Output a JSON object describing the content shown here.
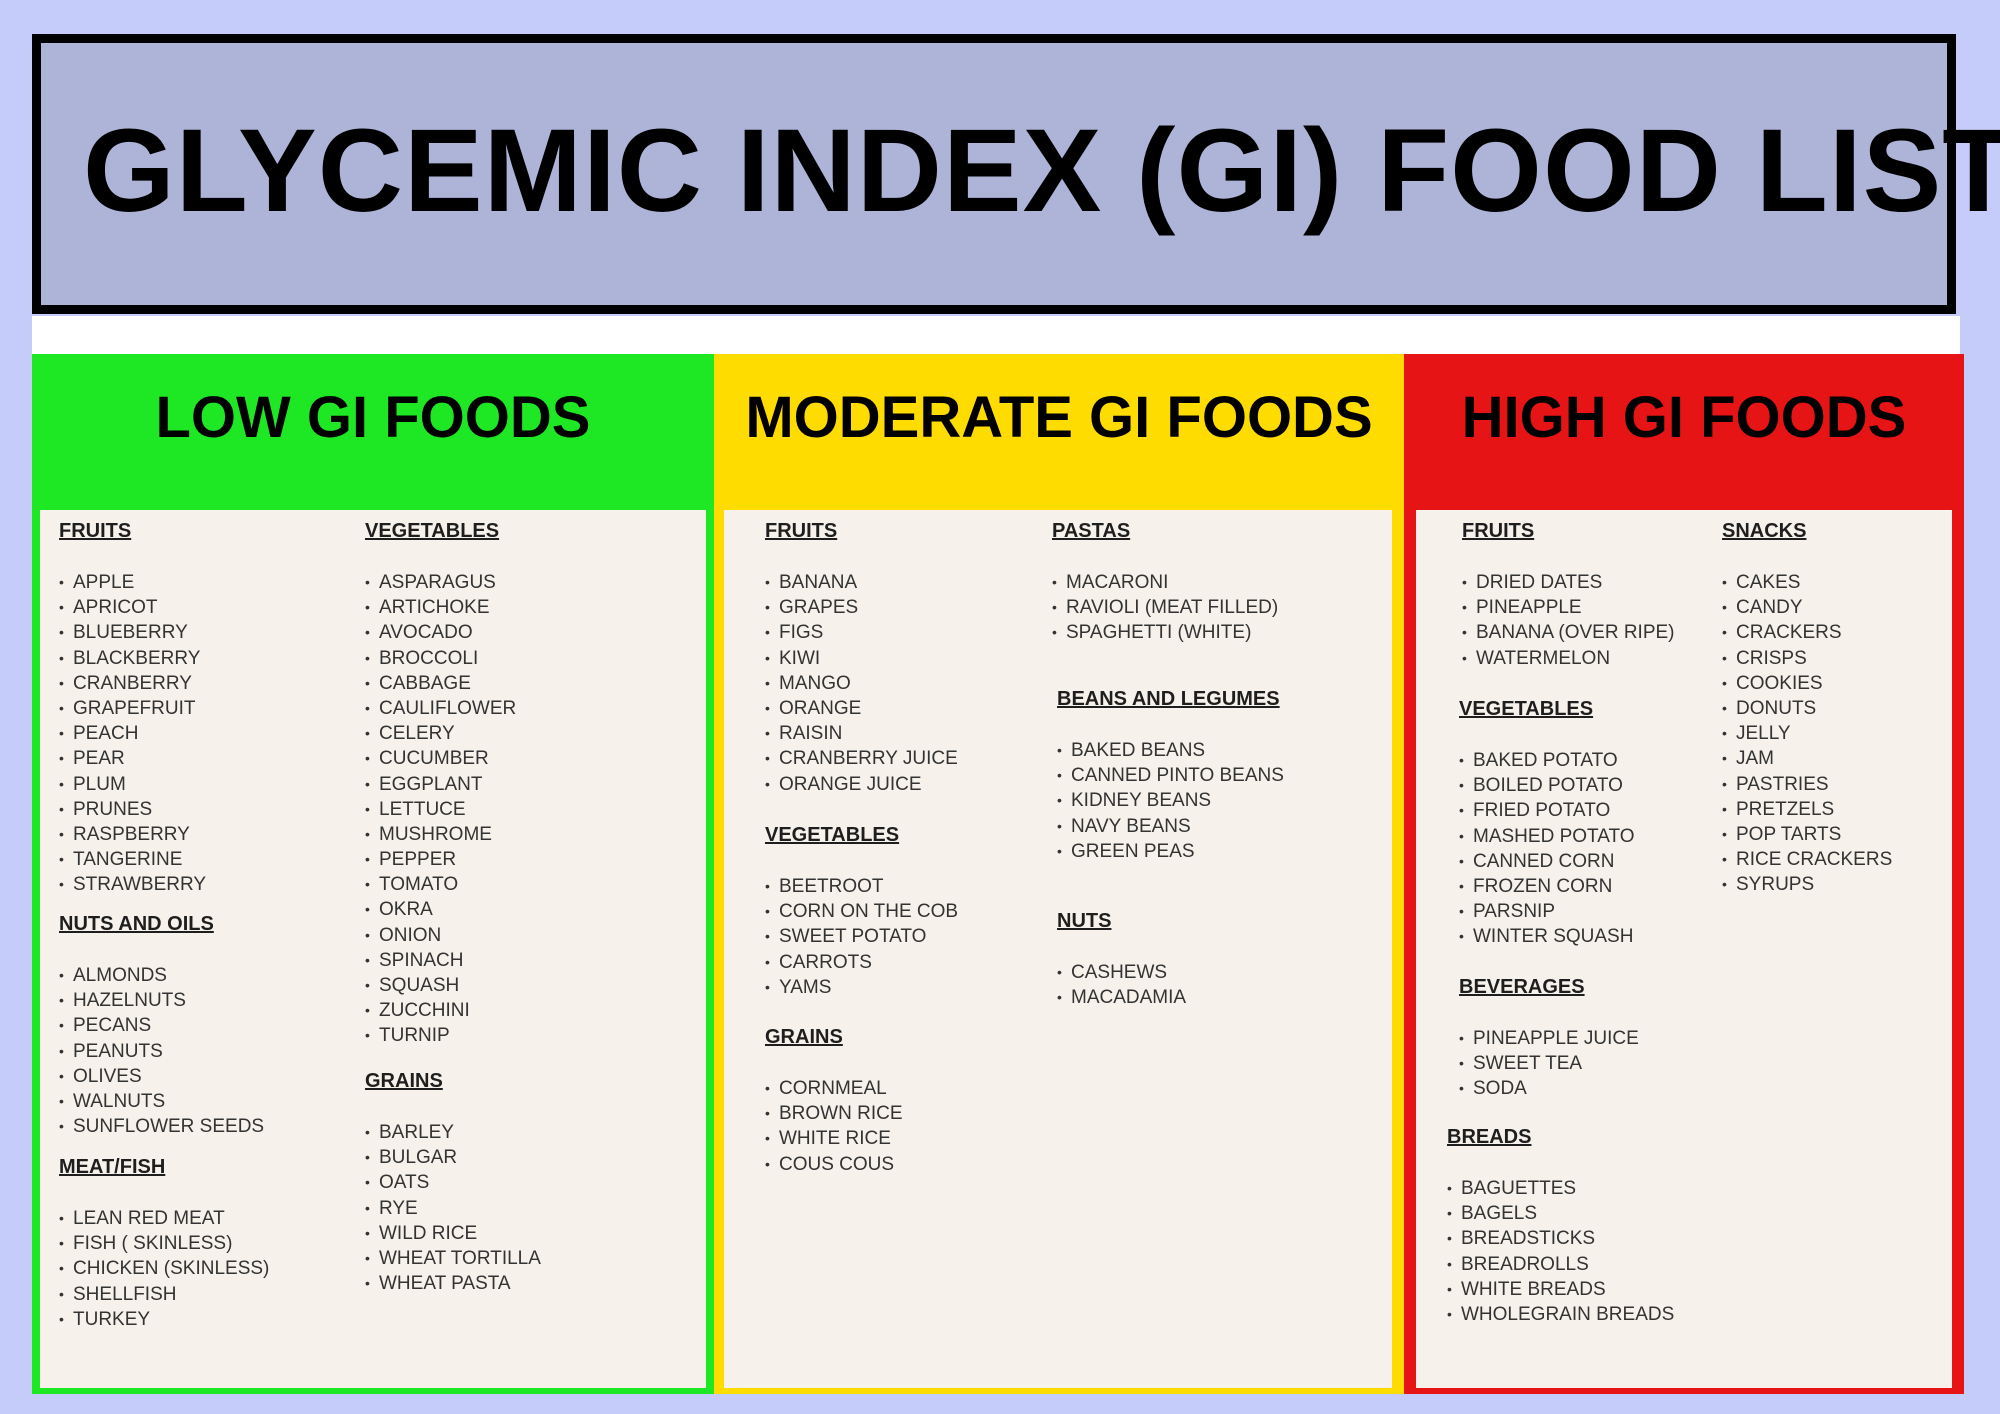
{
  "title": "GLYCEMIC INDEX (GI) FOOD LIST",
  "colors": {
    "background": "#c5ccfa",
    "title_box": "#adb4d8",
    "low": "#1ee824",
    "moderate": "#ffdc00",
    "high": "#e61414",
    "panel": "#f6f1ea"
  },
  "low": {
    "header": "LOW GI FOODS",
    "fruits": {
      "title": "FRUITS",
      "items": [
        "APPLE",
        "APRICOT",
        "BLUEBERRY",
        "BLACKBERRY",
        "CRANBERRY",
        "GRAPEFRUIT",
        "PEACH",
        "PEAR",
        "PLUM",
        "PRUNES",
        "RASPBERRY",
        "TANGERINE",
        "STRAWBERRY"
      ]
    },
    "nuts_oils": {
      "title": "NUTS AND OILS",
      "items": [
        "ALMONDS",
        "HAZELNUTS",
        "PECANS",
        "PEANUTS",
        "OLIVES",
        "WALNUTS",
        "SUNFLOWER SEEDS"
      ]
    },
    "meat_fish": {
      "title": "MEAT/FISH",
      "items": [
        "LEAN RED MEAT",
        "FISH ( SKINLESS)",
        "CHICKEN (SKINLESS)",
        "SHELLFISH",
        "TURKEY"
      ]
    },
    "vegetables": {
      "title": "VEGETABLES",
      "items": [
        "ASPARAGUS",
        "ARTICHOKE",
        "AVOCADO",
        "BROCCOLI",
        "CABBAGE",
        "CAULIFLOWER",
        "CELERY",
        "CUCUMBER",
        "EGGPLANT",
        "LETTUCE",
        "MUSHROME",
        "PEPPER",
        "TOMATO",
        "OKRA",
        "ONION",
        "SPINACH",
        "SQUASH",
        "ZUCCHINI",
        "TURNIP"
      ]
    },
    "grains": {
      "title": "GRAINS",
      "items": [
        "BARLEY",
        "BULGAR",
        "OATS",
        "RYE",
        "WILD RICE",
        "WHEAT TORTILLA",
        "WHEAT PASTA"
      ]
    }
  },
  "moderate": {
    "header": "MODERATE GI FOODS",
    "fruits": {
      "title": "FRUITS",
      "items": [
        "BANANA",
        "GRAPES",
        "FIGS",
        "KIWI",
        "MANGO",
        "ORANGE",
        "RAISIN",
        "CRANBERRY    JUICE",
        "ORANGE JUICE"
      ]
    },
    "vegetables": {
      "title": "VEGETABLES",
      "items": [
        "BEETROOT",
        "CORN ON THE COB",
        "SWEET POTATO",
        "CARROTS",
        "YAMS"
      ]
    },
    "grains": {
      "title": "GRAINS",
      "items": [
        "CORNMEAL",
        "BROWN RICE",
        "WHITE RICE",
        "COUS COUS"
      ]
    },
    "pastas": {
      "title": "PASTAS",
      "items": [
        "MACARONI",
        "RAVIOLI (MEAT FILLED)",
        "SPAGHETTI (WHITE)"
      ]
    },
    "beans": {
      "title": "BEANS AND LEGUMES",
      "items": [
        "BAKED BEANS",
        "CANNED PINTO BEANS",
        "KIDNEY BEANS",
        "NAVY BEANS",
        "GREEN PEAS"
      ]
    },
    "nuts": {
      "title": "NUTS",
      "items": [
        "CASHEWS",
        "MACADAMIA"
      ]
    }
  },
  "high": {
    "header": "HIGH GI FOODS",
    "fruits": {
      "title": "FRUITS",
      "items": [
        "DRIED DATES",
        "PINEAPPLE",
        "BANANA (OVER RIPE)",
        "WATERMELON"
      ]
    },
    "vegetables": {
      "title": "VEGETABLES",
      "items": [
        "BAKED POTATO",
        "BOILED POTATO",
        "FRIED POTATO",
        "MASHED POTATO",
        "CANNED CORN",
        "FROZEN CORN",
        "PARSNIP",
        "WINTER SQUASH"
      ]
    },
    "beverages": {
      "title": "BEVERAGES",
      "items": [
        "PINEAPPLE JUICE",
        "SWEET TEA",
        "SODA"
      ]
    },
    "breads": {
      "title": "BREADS",
      "items": [
        "BAGUETTES",
        "BAGELS",
        "BREADSTICKS",
        "BREADROLLS",
        "WHITE BREADS",
        "WHOLEGRAIN BREADS"
      ]
    },
    "snacks": {
      "title": "SNACKS",
      "items": [
        "CAKES",
        "CANDY",
        "CRACKERS",
        "CRISPS",
        "COOKIES",
        "DONUTS",
        "JELLY",
        "JAM",
        "PASTRIES",
        "PRETZELS",
        "POP TARTS",
        "RICE CRACKERS",
        "SYRUPS"
      ]
    }
  }
}
